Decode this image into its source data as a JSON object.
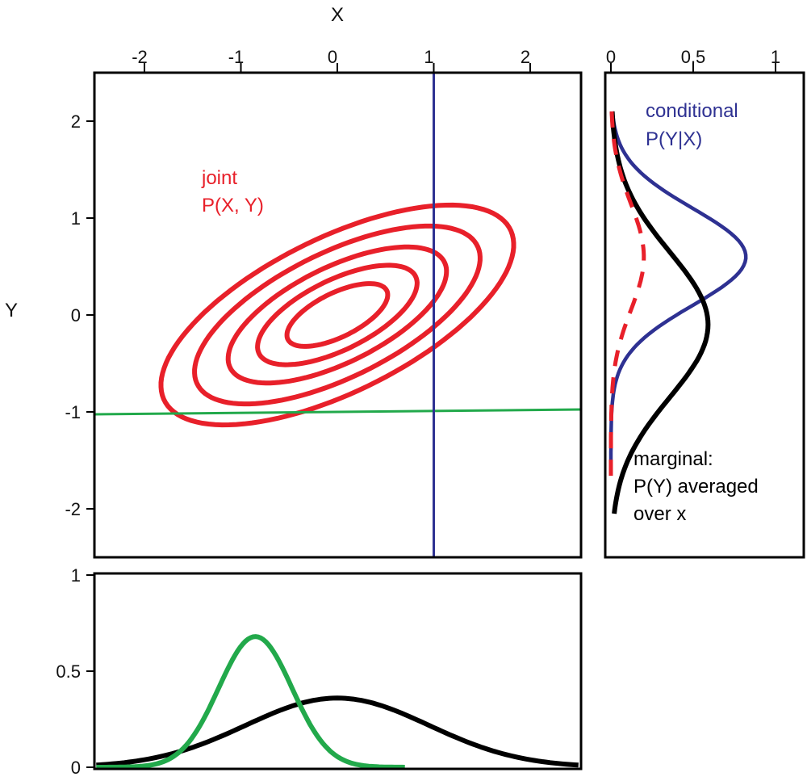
{
  "colors": {
    "joint": "#e8202a",
    "conditional": "#2e3192",
    "marginal": "#000000",
    "horizontal_slice": "#22a94b",
    "axis": "#000000"
  },
  "chart_data": [
    {
      "id": "joint",
      "type": "line",
      "subtype": "contour",
      "xlabel": "X",
      "ylabel": "Y",
      "xlim": [
        -2.5,
        2.5
      ],
      "ylim": [
        -2.5,
        2.5
      ],
      "xticks": [
        -2,
        -1,
        0,
        1,
        2
      ],
      "xtick_labels": [
        "-2",
        "-1",
        "0",
        "1",
        "2"
      ],
      "yticks": [
        2,
        1,
        0,
        -1,
        -2
      ],
      "ytick_labels": [
        "2",
        "1",
        "0",
        "-1",
        "-2"
      ],
      "annotation": {
        "line1": "joint",
        "line2": "P(X, Y)"
      },
      "contour_levels": [
        0.6,
        0.95,
        1.3,
        1.7,
        2.1
      ],
      "correlation": 0.85,
      "series": [
        {
          "kind": "contours",
          "color": "joint"
        },
        {
          "kind": "vline",
          "x": 1,
          "color": "conditional"
        },
        {
          "kind": "hline",
          "y": -1,
          "color": "horizontal_slice"
        }
      ]
    },
    {
      "id": "side",
      "type": "line",
      "orientation": "vertical",
      "xlim": [
        0,
        1
      ],
      "ylim": [
        -2.5,
        2.5
      ],
      "xticks": [
        0,
        0.5,
        1
      ],
      "xtick_labels": [
        "0",
        "0.5",
        "1"
      ],
      "annotations": {
        "conditional_line1": "conditional",
        "conditional_line2": "P(Y|X)",
        "marginal_line1": "marginal:",
        "marginal_line2": "P(Y) averaged",
        "marginal_line3": "over x"
      },
      "series": [
        {
          "kind": "gaussian",
          "mean": 0.6,
          "sd": 0.5,
          "peak": 0.82,
          "y_range": [
            -1.6,
            2.1
          ],
          "color": "conditional",
          "style": "solid"
        },
        {
          "kind": "gaussian",
          "mean": -0.1,
          "sd": 0.75,
          "peak": 0.59,
          "y_range": [
            -2.05,
            2.1
          ],
          "color": "marginal",
          "style": "solid"
        },
        {
          "kind": "gaussian",
          "mean": 0.6,
          "sd": 0.55,
          "peak": 0.2,
          "y_range": [
            -1.7,
            2.1
          ],
          "color": "joint",
          "style": "dashed"
        }
      ]
    },
    {
      "id": "bottom",
      "type": "line",
      "xlim": [
        -2.5,
        2.5
      ],
      "ylim": [
        0,
        1
      ],
      "yticks": [
        1,
        0.5,
        0
      ],
      "ytick_labels": [
        "1",
        "0.5",
        "0"
      ],
      "series": [
        {
          "kind": "gaussian",
          "mean": -0.85,
          "sd": 0.38,
          "peak": 0.68,
          "x_range": [
            -2.5,
            0.7
          ],
          "color": "horizontal_slice",
          "style": "solid"
        },
        {
          "kind": "gaussian",
          "mean": 0.0,
          "sd": 0.95,
          "peak": 0.36,
          "x_range": [
            -2.5,
            2.5
          ],
          "color": "marginal",
          "style": "solid"
        }
      ]
    }
  ]
}
